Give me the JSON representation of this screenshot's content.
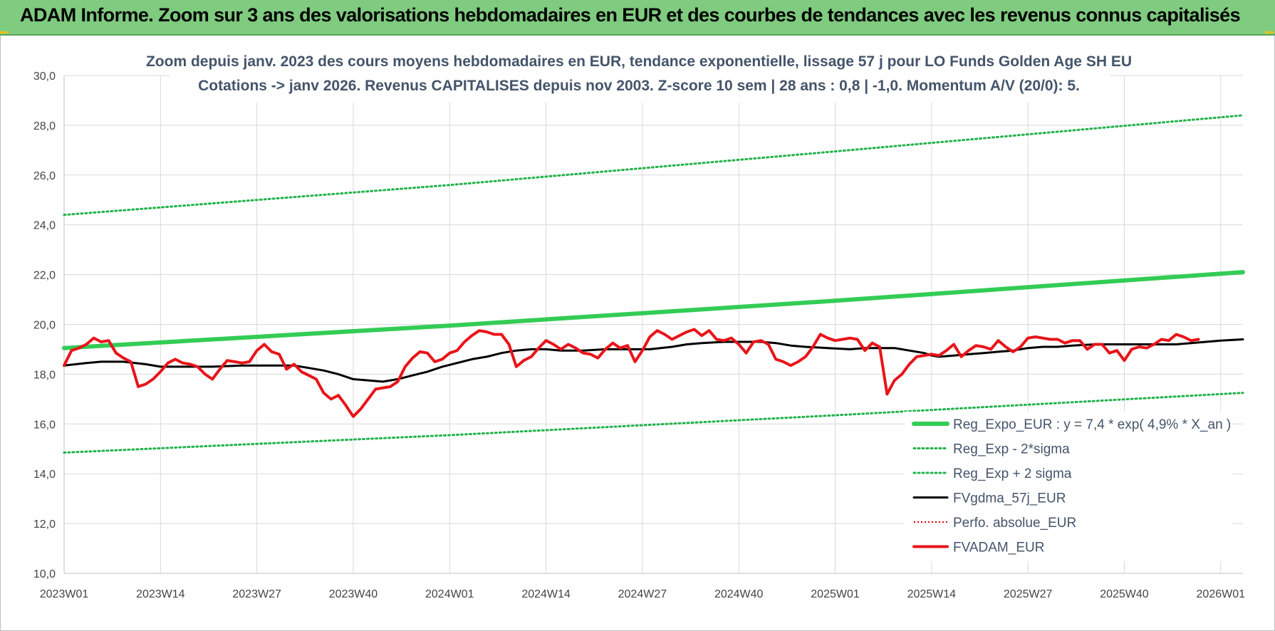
{
  "banner": {
    "title": "ADAM Informe. Zoom sur 3 ans des valorisations hebdomadaires en EUR et des courbes de tendances avec les revenus connus capitalisés"
  },
  "chart_data": {
    "type": "line",
    "title_line1": "Zoom depuis janv. 2023 des cours moyens hebdomadaires en EUR, tendance exponentielle, lissage 57 j pour LO Funds Golden Age SH EU",
    "title_line2": "Cotations -> janv 2026. Revenus CAPITALISES depuis nov 2003. Z-score 10 sem | 28 ans : 0,8 | -1,0. Momentum A/V (20/0): 5.",
    "ylim": [
      10,
      30
    ],
    "y_ticks": [
      "10,0",
      "12,0",
      "14,0",
      "16,0",
      "18,0",
      "20,0",
      "22,0",
      "24,0",
      "26,0",
      "28,0",
      "30,0"
    ],
    "x_range_weeks": [
      0,
      159
    ],
    "x_ticks": [
      {
        "label": "2023W01",
        "week": 0
      },
      {
        "label": "2023W14",
        "week": 13
      },
      {
        "label": "2023W27",
        "week": 26
      },
      {
        "label": "2023W40",
        "week": 39
      },
      {
        "label": "2024W01",
        "week": 52
      },
      {
        "label": "2024W14",
        "week": 65
      },
      {
        "label": "2024W27",
        "week": 78
      },
      {
        "label": "2024W40",
        "week": 91
      },
      {
        "label": "2025W01",
        "week": 104
      },
      {
        "label": "2025W14",
        "week": 117
      },
      {
        "label": "2025W27",
        "week": 130
      },
      {
        "label": "2025W40",
        "week": 143
      },
      {
        "label": "2026W01",
        "week": 156
      }
    ],
    "grid": true,
    "legend_position": "bottom-right",
    "colors": {
      "reg_expo": "#33cc55",
      "reg_band": "#22b24c",
      "fvgdma": "#000000",
      "perfo": "#e00000",
      "fvadam": "#e8141a"
    },
    "series": [
      {
        "name": "Reg_Expo_EUR : y = 7,4 * exp( 4,9% *  X_an )",
        "key": "reg_expo",
        "style": "solid-thick",
        "points": [
          [
            0,
            19.05
          ],
          [
            52,
            19.95
          ],
          [
            104,
            20.95
          ],
          [
            159,
            22.1
          ]
        ]
      },
      {
        "name": "Reg_Exp - 2*sigma",
        "key": "reg_lower",
        "style": "dotted",
        "points": [
          [
            0,
            14.85
          ],
          [
            52,
            15.55
          ],
          [
            104,
            16.35
          ],
          [
            159,
            17.25
          ]
        ]
      },
      {
        "name": "Reg_Exp + 2 sigma",
        "key": "reg_upper",
        "style": "dotted",
        "points": [
          [
            0,
            24.4
          ],
          [
            52,
            25.6
          ],
          [
            104,
            26.95
          ],
          [
            159,
            28.4
          ]
        ]
      },
      {
        "name": "FVgdma_57j_EUR",
        "key": "fvgdma",
        "style": "solid",
        "points": [
          [
            0,
            18.35
          ],
          [
            3,
            18.45
          ],
          [
            5,
            18.5
          ],
          [
            8,
            18.5
          ],
          [
            11,
            18.4
          ],
          [
            13,
            18.3
          ],
          [
            16,
            18.3
          ],
          [
            20,
            18.3
          ],
          [
            24,
            18.35
          ],
          [
            28,
            18.35
          ],
          [
            31,
            18.35
          ],
          [
            33,
            18.25
          ],
          [
            35,
            18.15
          ],
          [
            37,
            18.0
          ],
          [
            39,
            17.8
          ],
          [
            41,
            17.75
          ],
          [
            43,
            17.7
          ],
          [
            45,
            17.8
          ],
          [
            47,
            17.95
          ],
          [
            49,
            18.1
          ],
          [
            51,
            18.3
          ],
          [
            53,
            18.45
          ],
          [
            55,
            18.6
          ],
          [
            57,
            18.7
          ],
          [
            59,
            18.85
          ],
          [
            61,
            18.95
          ],
          [
            63,
            19.0
          ],
          [
            65,
            19.0
          ],
          [
            67,
            18.95
          ],
          [
            70,
            18.95
          ],
          [
            73,
            19.0
          ],
          [
            76,
            19.0
          ],
          [
            79,
            19.0
          ],
          [
            82,
            19.1
          ],
          [
            84,
            19.2
          ],
          [
            86,
            19.25
          ],
          [
            89,
            19.3
          ],
          [
            92,
            19.3
          ],
          [
            94,
            19.3
          ],
          [
            96,
            19.25
          ],
          [
            98,
            19.15
          ],
          [
            100,
            19.1
          ],
          [
            103,
            19.05
          ],
          [
            106,
            19.0
          ],
          [
            108,
            19.05
          ],
          [
            110,
            19.05
          ],
          [
            112,
            19.05
          ],
          [
            114,
            18.95
          ],
          [
            116,
            18.85
          ],
          [
            117,
            18.75
          ],
          [
            118,
            18.7
          ],
          [
            120,
            18.75
          ],
          [
            122,
            18.8
          ],
          [
            124,
            18.85
          ],
          [
            126,
            18.9
          ],
          [
            128,
            18.95
          ],
          [
            130,
            19.05
          ],
          [
            132,
            19.1
          ],
          [
            134,
            19.1
          ],
          [
            136,
            19.15
          ],
          [
            139,
            19.2
          ],
          [
            142,
            19.2
          ],
          [
            145,
            19.2
          ],
          [
            148,
            19.2
          ],
          [
            150,
            19.2
          ],
          [
            152,
            19.25
          ],
          [
            154,
            19.3
          ],
          [
            156,
            19.35
          ],
          [
            159,
            19.4
          ]
        ]
      },
      {
        "name": "Perfo. absolue_EUR",
        "key": "perfo",
        "style": "dotted",
        "points": []
      },
      {
        "name": "FVADAM_EUR",
        "key": "fvadam",
        "style": "solid-thick",
        "points": [
          [
            0,
            18.35
          ],
          [
            1,
            18.95
          ],
          [
            2,
            19.05
          ],
          [
            3,
            19.2
          ],
          [
            4,
            19.45
          ],
          [
            5,
            19.3
          ],
          [
            6,
            19.35
          ],
          [
            7,
            18.85
          ],
          [
            8,
            18.65
          ],
          [
            9,
            18.5
          ],
          [
            10,
            17.5
          ],
          [
            11,
            17.6
          ],
          [
            12,
            17.8
          ],
          [
            13,
            18.1
          ],
          [
            14,
            18.45
          ],
          [
            15,
            18.6
          ],
          [
            16,
            18.45
          ],
          [
            17,
            18.4
          ],
          [
            18,
            18.3
          ],
          [
            19,
            18.0
          ],
          [
            20,
            17.8
          ],
          [
            21,
            18.2
          ],
          [
            22,
            18.55
          ],
          [
            23,
            18.5
          ],
          [
            24,
            18.45
          ],
          [
            25,
            18.5
          ],
          [
            26,
            18.95
          ],
          [
            27,
            19.2
          ],
          [
            28,
            18.9
          ],
          [
            29,
            18.8
          ],
          [
            30,
            18.2
          ],
          [
            31,
            18.4
          ],
          [
            32,
            18.1
          ],
          [
            33,
            17.95
          ],
          [
            34,
            17.8
          ],
          [
            35,
            17.25
          ],
          [
            36,
            17.0
          ],
          [
            37,
            17.15
          ],
          [
            38,
            16.75
          ],
          [
            39,
            16.3
          ],
          [
            40,
            16.6
          ],
          [
            41,
            17.0
          ],
          [
            42,
            17.4
          ],
          [
            43,
            17.45
          ],
          [
            44,
            17.5
          ],
          [
            45,
            17.7
          ],
          [
            46,
            18.3
          ],
          [
            47,
            18.65
          ],
          [
            48,
            18.9
          ],
          [
            49,
            18.85
          ],
          [
            50,
            18.5
          ],
          [
            51,
            18.6
          ],
          [
            52,
            18.85
          ],
          [
            53,
            18.95
          ],
          [
            54,
            19.3
          ],
          [
            55,
            19.55
          ],
          [
            56,
            19.75
          ],
          [
            57,
            19.7
          ],
          [
            58,
            19.6
          ],
          [
            59,
            19.6
          ],
          [
            60,
            19.2
          ],
          [
            61,
            18.3
          ],
          [
            62,
            18.55
          ],
          [
            63,
            18.7
          ],
          [
            64,
            19.05
          ],
          [
            65,
            19.35
          ],
          [
            66,
            19.2
          ],
          [
            67,
            19.0
          ],
          [
            68,
            19.2
          ],
          [
            69,
            19.05
          ],
          [
            70,
            18.85
          ],
          [
            71,
            18.8
          ],
          [
            72,
            18.65
          ],
          [
            73,
            19.0
          ],
          [
            74,
            19.25
          ],
          [
            75,
            19.05
          ],
          [
            76,
            19.15
          ],
          [
            77,
            18.5
          ],
          [
            78,
            18.95
          ],
          [
            79,
            19.5
          ],
          [
            80,
            19.75
          ],
          [
            81,
            19.6
          ],
          [
            82,
            19.4
          ],
          [
            83,
            19.55
          ],
          [
            84,
            19.7
          ],
          [
            85,
            19.8
          ],
          [
            86,
            19.55
          ],
          [
            87,
            19.75
          ],
          [
            88,
            19.4
          ],
          [
            89,
            19.35
          ],
          [
            90,
            19.45
          ],
          [
            91,
            19.2
          ],
          [
            92,
            18.85
          ],
          [
            93,
            19.3
          ],
          [
            94,
            19.35
          ],
          [
            95,
            19.2
          ],
          [
            96,
            18.6
          ],
          [
            97,
            18.5
          ],
          [
            98,
            18.35
          ],
          [
            99,
            18.5
          ],
          [
            100,
            18.7
          ],
          [
            101,
            19.1
          ],
          [
            102,
            19.6
          ],
          [
            103,
            19.45
          ],
          [
            104,
            19.35
          ],
          [
            105,
            19.4
          ],
          [
            106,
            19.45
          ],
          [
            107,
            19.4
          ],
          [
            108,
            18.95
          ],
          [
            109,
            19.25
          ],
          [
            110,
            19.1
          ],
          [
            111,
            17.2
          ],
          [
            112,
            17.75
          ],
          [
            113,
            18.0
          ],
          [
            114,
            18.4
          ],
          [
            115,
            18.7
          ],
          [
            116,
            18.75
          ],
          [
            117,
            18.8
          ],
          [
            118,
            18.75
          ],
          [
            119,
            18.95
          ],
          [
            120,
            19.2
          ],
          [
            121,
            18.7
          ],
          [
            122,
            18.95
          ],
          [
            123,
            19.15
          ],
          [
            124,
            19.1
          ],
          [
            125,
            19.0
          ],
          [
            126,
            19.35
          ],
          [
            127,
            19.1
          ],
          [
            128,
            18.9
          ],
          [
            129,
            19.1
          ],
          [
            130,
            19.45
          ],
          [
            131,
            19.5
          ],
          [
            132,
            19.45
          ],
          [
            133,
            19.4
          ],
          [
            134,
            19.4
          ],
          [
            135,
            19.25
          ],
          [
            136,
            19.35
          ],
          [
            137,
            19.35
          ],
          [
            138,
            19.0
          ],
          [
            139,
            19.2
          ],
          [
            140,
            19.2
          ],
          [
            141,
            18.85
          ],
          [
            142,
            18.95
          ],
          [
            143,
            18.55
          ],
          [
            144,
            19.0
          ],
          [
            145,
            19.1
          ],
          [
            146,
            19.05
          ],
          [
            147,
            19.2
          ],
          [
            148,
            19.4
          ],
          [
            149,
            19.35
          ],
          [
            150,
            19.6
          ],
          [
            151,
            19.5
          ],
          [
            152,
            19.35
          ],
          [
            153,
            19.4
          ]
        ]
      }
    ]
  }
}
